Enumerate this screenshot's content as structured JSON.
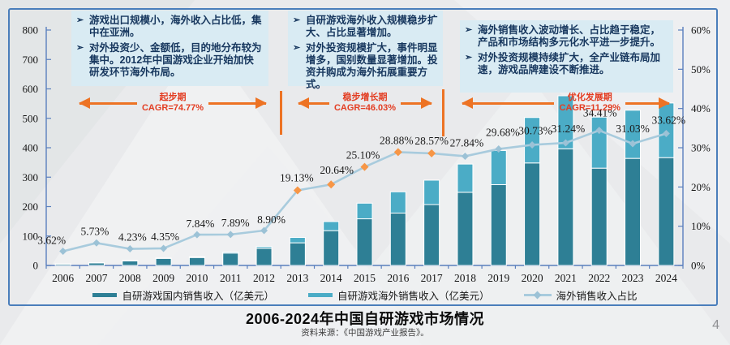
{
  "bullet": "➢",
  "page": {
    "title": "2006-2024年中国自研游戏市场情况",
    "source": "资料来源：《中国游戏产业报告》。",
    "page_number": "4"
  },
  "notes": [
    {
      "items": [
        "游戏出口规模小，海外收入占比低，集中在亚洲。",
        "对外投资少、金额低，目的地分布较为集中。2012年中国游戏企业开始加快研发环节海外布局。"
      ]
    },
    {
      "items": [
        "自研游戏海外收入规模稳步扩大、占比显著增加。",
        "对外投资规模扩大，事件明显增多，国别数量显著增加。投资并购成为海外拓展重要方式。"
      ]
    },
    {
      "items": [
        "海外销售收入波动增长、占比趋于稳定，产品和市场结构多元化水平进一步提升。",
        "对外投资规模持续扩大，全产业链布局加速，游戏品牌建设不断推进。"
      ]
    }
  ],
  "phases": [
    {
      "name": "起步期",
      "cagr": "CAGR=74.77%"
    },
    {
      "name": "稳步增长期",
      "cagr": "CAGR=46.03%"
    },
    {
      "name": "优化发展期",
      "cagr": "CAGR=11.29%"
    }
  ],
  "legend": [
    {
      "label": "自研游戏国内销售收入（亿美元）",
      "swatch": "bar-dark"
    },
    {
      "label": "自研游戏海外销售收入（亿美元）",
      "swatch": "bar-light"
    },
    {
      "label": "海外销售收入占比",
      "swatch": "line"
    }
  ],
  "colors": {
    "bar_domestic": "#2e7f95",
    "bar_overseas": "#4bacc6",
    "line": "#a8cbdd",
    "marker": "#9cc2d6",
    "marker_highlight": "#f79646",
    "axis": "#5a7fbe",
    "annotation_arrow": "#ed7324",
    "annotation_text": "#e33d22",
    "note_bg": "#d9ebf3",
    "note_text": "#17375e",
    "frame_border": "#4a7ebb"
  },
  "chart_data": {
    "type": "bar+line (stacked bars, left axis; line on right % axis)",
    "title": "2006-2024年中国自研游戏市场情况",
    "categories": [
      "2006",
      "2007",
      "2008",
      "2009",
      "2010",
      "2011",
      "2012",
      "2013",
      "2014",
      "2015",
      "2016",
      "2017",
      "2018",
      "2019",
      "2020",
      "2021",
      "2022",
      "2023",
      "2024"
    ],
    "series": [
      {
        "name": "自研游戏国内销售收入（亿美元）",
        "type": "bar",
        "axis": "left",
        "values": [
          5.3,
          9.0,
          15.8,
          24.0,
          27.0,
          42.0,
          58.3,
          76.9,
          118.3,
          158.5,
          178.0,
          207.0,
          248.6,
          274.6,
          348.3,
          396.5,
          330.6,
          363.8,
          366.4
        ]
      },
      {
        "name": "自研游戏海外销售收入（亿美元）",
        "type": "bar",
        "axis": "left",
        "values": [
          0.2,
          0.6,
          0.7,
          1.1,
          2.3,
          3.6,
          5.7,
          18.2,
          30.8,
          53.1,
          72.3,
          82.8,
          95.9,
          115.9,
          154.5,
          180.1,
          173.5,
          163.7,
          185.6
        ]
      },
      {
        "name": "海外销售收入占比",
        "type": "line",
        "axis": "right",
        "values": [
          3.62,
          5.73,
          4.23,
          4.35,
          7.84,
          7.89,
          8.9,
          19.13,
          20.64,
          25.1,
          28.88,
          28.57,
          27.84,
          29.68,
          30.73,
          31.24,
          34.41,
          31.03,
          33.62
        ],
        "point_labels": [
          "3.62%",
          "5.73%",
          "4.23%",
          "4.35%",
          "7.84%",
          "7.89%",
          "8.90%",
          "19.13%",
          "20.64%",
          "25.10%",
          "28.88%",
          "28.57%",
          "27.84%",
          "29.68%",
          "30.73%",
          "31.24%",
          "34.41%",
          "31.03%",
          "33.62%"
        ],
        "highlighted_marker_categories": [
          "2013",
          "2014",
          "2015",
          "2016",
          "2017"
        ]
      }
    ],
    "left_axis": {
      "min": 0,
      "max": 800,
      "step": 100,
      "tick_labels": [
        "0",
        "100",
        "200",
        "300",
        "400",
        "500",
        "600",
        "700",
        "800"
      ]
    },
    "right_axis": {
      "min": 0,
      "max": 60,
      "step": 10,
      "tick_labels": [
        "0%",
        "10%",
        "20%",
        "30%",
        "40%",
        "50%",
        "60%"
      ]
    },
    "grid": false,
    "legend_position": "bottom",
    "bars_stacked": true
  }
}
